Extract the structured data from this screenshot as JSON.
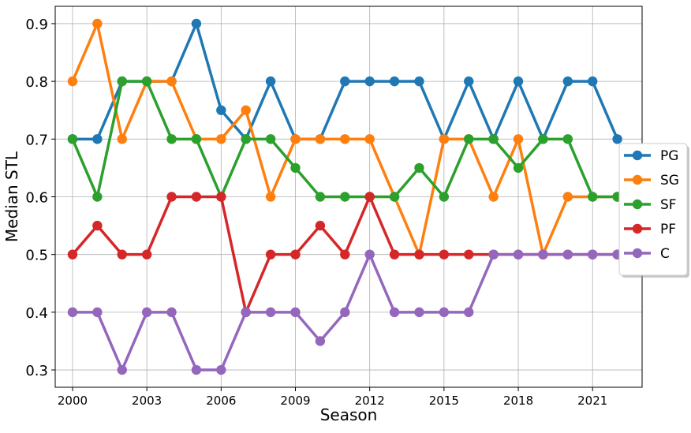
{
  "chart_data": {
    "type": "line",
    "title": "",
    "xlabel": "Season",
    "ylabel": "Median STL",
    "xlim": [
      1999.3,
      2023.0
    ],
    "ylim": [
      0.27,
      0.93
    ],
    "x_ticks": [
      2000,
      2003,
      2006,
      2009,
      2012,
      2015,
      2018,
      2021
    ],
    "x_tick_labels": [
      "2000",
      "2003",
      "2006",
      "2009",
      "2012",
      "2015",
      "2018",
      "2021"
    ],
    "y_ticks": [
      0.3,
      0.4,
      0.5,
      0.6,
      0.7,
      0.8,
      0.9
    ],
    "y_tick_labels": [
      "0.3",
      "0.4",
      "0.5",
      "0.6",
      "0.7",
      "0.8",
      "0.9"
    ],
    "grid": true,
    "legend_position": "right",
    "x": [
      2000,
      2001,
      2002,
      2003,
      2004,
      2005,
      2006,
      2007,
      2008,
      2009,
      2010,
      2011,
      2012,
      2013,
      2014,
      2015,
      2016,
      2017,
      2018,
      2019,
      2020,
      2021,
      2022
    ],
    "series": [
      {
        "name": "PG",
        "color": "#1f77b4",
        "values": [
          0.7,
          0.7,
          0.8,
          0.8,
          0.8,
          0.9,
          0.75,
          0.7,
          0.8,
          0.7,
          0.7,
          0.8,
          0.8,
          0.8,
          0.8,
          0.7,
          0.8,
          0.7,
          0.8,
          0.7,
          0.8,
          0.8,
          0.7
        ]
      },
      {
        "name": "SG",
        "color": "#ff7f0e",
        "values": [
          0.8,
          0.9,
          0.7,
          0.8,
          0.8,
          0.7,
          0.7,
          0.75,
          0.6,
          0.7,
          0.7,
          0.7,
          0.7,
          0.6,
          0.5,
          0.7,
          0.7,
          0.6,
          0.7,
          0.5,
          0.6,
          0.6,
          0.6
        ]
      },
      {
        "name": "SF",
        "color": "#2ca02c",
        "values": [
          0.7,
          0.6,
          0.8,
          0.8,
          0.7,
          0.7,
          0.6,
          0.7,
          0.7,
          0.65,
          0.6,
          0.6,
          0.6,
          0.6,
          0.65,
          0.6,
          0.7,
          0.7,
          0.65,
          0.7,
          0.7,
          0.6,
          0.6
        ]
      },
      {
        "name": "PF",
        "color": "#d62728",
        "values": [
          0.5,
          0.55,
          0.5,
          0.5,
          0.6,
          0.6,
          0.6,
          0.4,
          0.5,
          0.5,
          0.55,
          0.5,
          0.6,
          0.5,
          0.5,
          0.5,
          0.5,
          0.5,
          0.5,
          0.5,
          0.5,
          0.5,
          0.5
        ]
      },
      {
        "name": "C",
        "color": "#9467bd",
        "values": [
          0.4,
          0.4,
          0.3,
          0.4,
          0.4,
          0.3,
          0.3,
          0.4,
          0.4,
          0.4,
          0.35,
          0.4,
          0.5,
          0.4,
          0.4,
          0.4,
          0.4,
          0.5,
          0.5,
          0.5,
          0.5,
          0.5,
          0.5
        ]
      }
    ]
  }
}
